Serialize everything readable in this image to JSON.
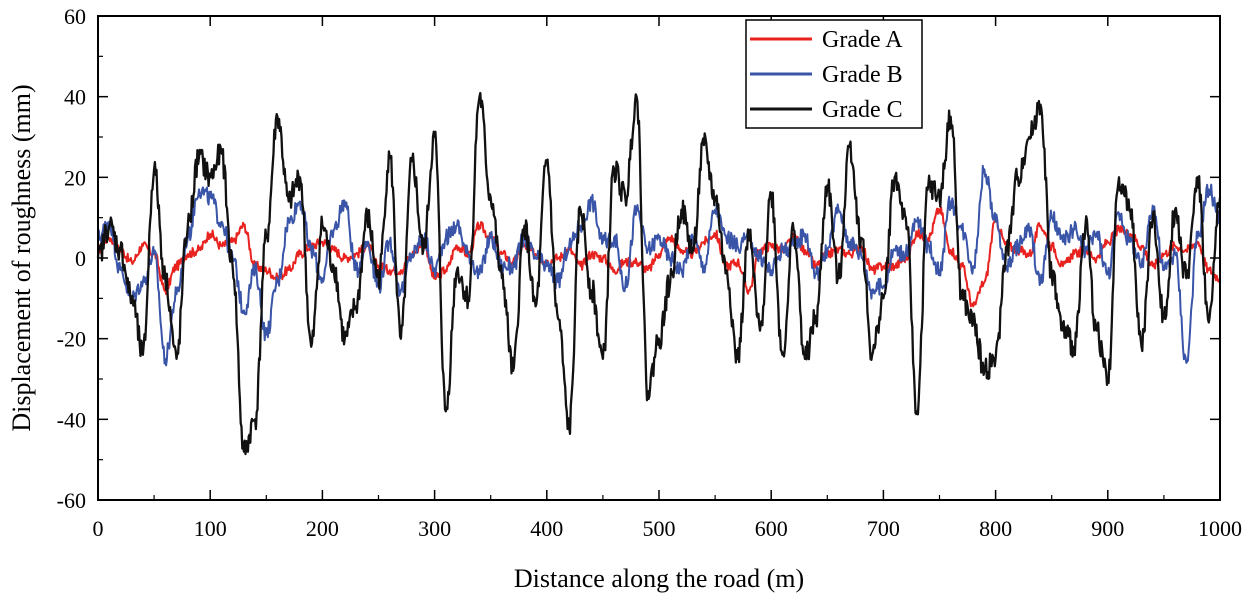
{
  "chart_data": {
    "type": "line",
    "title": "",
    "xlabel": "Distance along the road (m)",
    "ylabel": "Displacement of roughness (mm)",
    "xlim": [
      0,
      1000
    ],
    "ylim": [
      -60,
      60
    ],
    "x_ticks": [
      0,
      100,
      200,
      300,
      400,
      500,
      600,
      700,
      800,
      900,
      1000
    ],
    "x_tick_labels": [
      "0",
      "100",
      "200",
      "300",
      "400",
      "500",
      "600",
      "700",
      "800",
      "900",
      "1000"
    ],
    "y_ticks": [
      -60,
      -40,
      -20,
      0,
      20,
      40,
      60
    ],
    "y_tick_labels": [
      "-60",
      "-40",
      "-20",
      "0",
      "20",
      "40",
      "60"
    ],
    "grid": false,
    "legend": {
      "position": "top-right",
      "entries": [
        "Grade A",
        "Grade B",
        "Grade C"
      ]
    },
    "x": [
      0,
      10,
      20,
      30,
      40,
      50,
      60,
      70,
      80,
      90,
      100,
      110,
      120,
      130,
      140,
      150,
      160,
      170,
      180,
      190,
      200,
      210,
      220,
      230,
      240,
      250,
      260,
      270,
      280,
      290,
      300,
      310,
      320,
      330,
      340,
      350,
      360,
      370,
      380,
      390,
      400,
      410,
      420,
      430,
      440,
      450,
      460,
      470,
      480,
      490,
      500,
      510,
      520,
      530,
      540,
      550,
      560,
      570,
      580,
      590,
      600,
      610,
      620,
      630,
      640,
      650,
      660,
      670,
      680,
      690,
      700,
      710,
      720,
      730,
      740,
      750,
      760,
      770,
      780,
      790,
      800,
      810,
      820,
      830,
      840,
      850,
      860,
      870,
      880,
      890,
      900,
      910,
      920,
      930,
      940,
      950,
      960,
      970,
      980,
      990,
      1000
    ],
    "series": [
      {
        "name": "Grade A",
        "color": "#e8231f",
        "values": [
          2,
          5,
          2,
          -1,
          3,
          1,
          -8,
          -2,
          1,
          2,
          6,
          3,
          4,
          8,
          -2,
          -3,
          -5,
          -3,
          1,
          3,
          4,
          2,
          0,
          1,
          3,
          -2,
          -3,
          -3,
          1,
          4,
          -5,
          -3,
          3,
          1,
          8,
          5,
          1,
          -1,
          3,
          1,
          -1,
          0,
          2,
          -2,
          1,
          0,
          -3,
          -1,
          -1,
          -3,
          1,
          5,
          2,
          1,
          4,
          6,
          -2,
          -1,
          -8,
          2,
          3,
          2,
          5,
          2,
          -2,
          1,
          2,
          1,
          3,
          -3,
          -2,
          -2,
          0,
          6,
          5,
          12,
          2,
          -2,
          -12,
          -6,
          9,
          3,
          2,
          1,
          8,
          3,
          -2,
          1,
          2,
          0,
          4,
          7,
          6,
          3,
          -2,
          1,
          3,
          2,
          4,
          -3,
          -5
        ]
      },
      {
        "name": "Grade B",
        "color": "#3a55a8",
        "values": [
          5,
          9,
          -3,
          -10,
          -6,
          1,
          -25,
          -9,
          5,
          17,
          15,
          9,
          0,
          -13,
          -3,
          -19,
          -6,
          9,
          14,
          2,
          -5,
          7,
          14,
          -3,
          4,
          -7,
          4,
          -8,
          1,
          5,
          -3,
          5,
          8,
          1,
          -4,
          5,
          -2,
          -2,
          5,
          0,
          -2,
          -6,
          3,
          8,
          14,
          4,
          5,
          -7,
          12,
          2,
          5,
          0,
          -3,
          5,
          -2,
          12,
          5,
          3,
          5,
          0,
          -3,
          2,
          3,
          6,
          -4,
          2,
          12,
          4,
          1,
          -8,
          -7,
          2,
          1,
          9,
          3,
          -3,
          14,
          7,
          -2,
          22,
          9,
          -2,
          3,
          7,
          -6,
          10,
          4,
          7,
          2,
          6,
          -4,
          11,
          4,
          -2,
          13,
          -3,
          1,
          -26,
          5,
          17,
          10
        ]
      },
      {
        "name": "Grade C",
        "color": "#111111",
        "values": [
          0,
          8,
          2,
          -10,
          -24,
          22,
          -5,
          -25,
          8,
          25,
          20,
          26,
          -2,
          -48,
          -40,
          5,
          35,
          14,
          20,
          -22,
          8,
          -2,
          -20,
          -12,
          10,
          -5,
          25,
          -20,
          24,
          2,
          30,
          -38,
          -3,
          -10,
          40,
          15,
          -5,
          -28,
          8,
          -12,
          24,
          -15,
          -42,
          12,
          -8,
          -25,
          22,
          15,
          40,
          -33,
          -20,
          -6,
          12,
          2,
          28,
          15,
          -3,
          -25,
          5,
          -18,
          16,
          -24,
          7,
          -25,
          -15,
          18,
          -5,
          28,
          5,
          -24,
          -10,
          20,
          10,
          -38,
          18,
          15,
          35,
          -10,
          -16,
          -28,
          -25,
          2,
          20,
          30,
          38,
          -4,
          -18,
          -22,
          8,
          -18,
          -30,
          20,
          12,
          -22,
          10,
          -15,
          12,
          -5,
          20,
          -16,
          15
        ]
      }
    ]
  }
}
